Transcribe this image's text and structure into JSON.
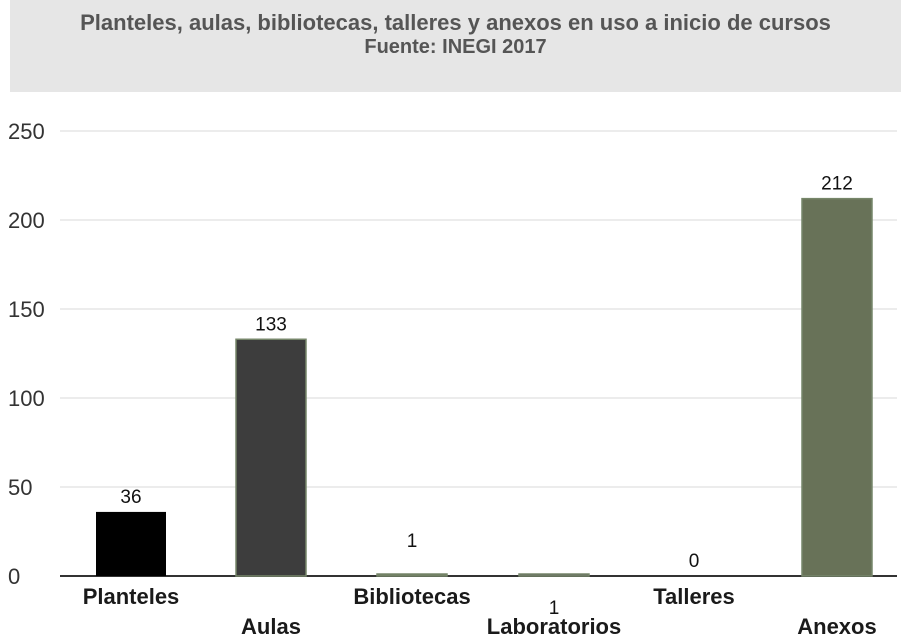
{
  "chart_data": {
    "type": "bar",
    "title": "Planteles, aulas, bibliotecas, talleres y anexos en uso a inicio de cursos",
    "subtitle": "Fuente: INEGI 2017",
    "categories": [
      "Planteles",
      "Aulas",
      "Bibliotecas",
      "Laboratorios",
      "Talleres",
      "Anexos"
    ],
    "values": [
      36,
      133,
      1,
      1,
      0,
      212
    ],
    "data_labels": [
      "36",
      "133",
      "1",
      "1",
      "0",
      "212"
    ],
    "bar_colors": [
      "#000000",
      "#3d3d3d",
      "#6a7558",
      "#5a5a5a",
      "#6a7558",
      "#687258"
    ],
    "ylim": [
      0,
      250
    ],
    "yticks": [
      "0",
      "50",
      "100",
      "150",
      "200",
      "250"
    ],
    "grid": true,
    "xlabel": "",
    "ylabel": ""
  }
}
